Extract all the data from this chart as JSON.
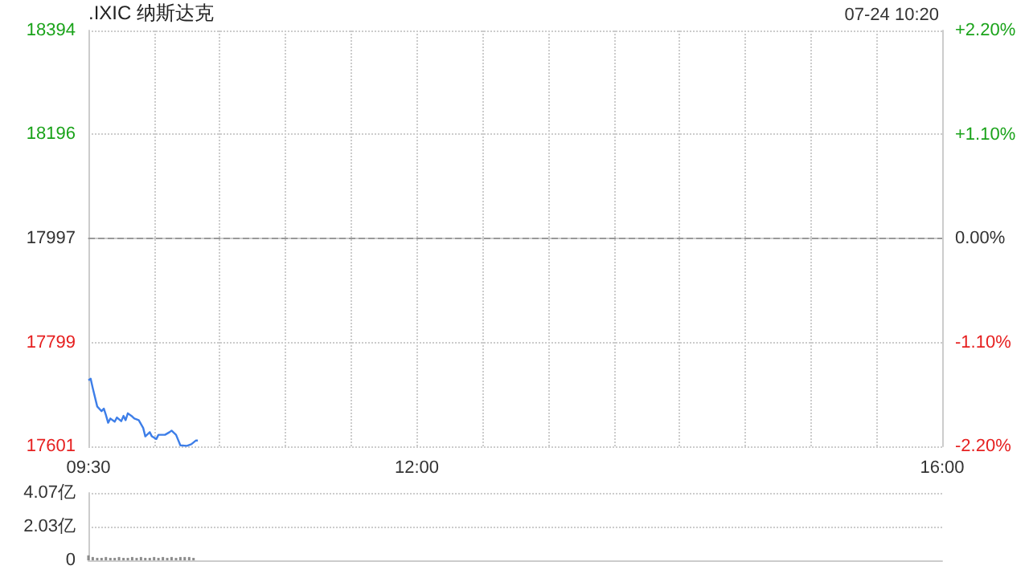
{
  "chart_data": [
    {
      "type": "line",
      "title": ".IXIC 纳斯达克",
      "annotations": [
        "07-24 10:20"
      ],
      "x": [
        9.5,
        9.517,
        9.533,
        9.567,
        9.6,
        9.617,
        9.633,
        9.65,
        9.667,
        9.7,
        9.717,
        9.75,
        9.767,
        9.783,
        9.8,
        9.833,
        9.85,
        9.883,
        9.917,
        9.933,
        9.967,
        9.983,
        10.017,
        10.033,
        10.083,
        10.117,
        10.133,
        10.167,
        10.2,
        10.25,
        10.283,
        10.317,
        10.333
      ],
      "series": [
        {
          "color": "#3d7ee8",
          "values": [
            17727,
            17730,
            17712,
            17677,
            17668,
            17673,
            17661,
            17646,
            17654,
            17648,
            17656,
            17649,
            17659,
            17651,
            17664,
            17658,
            17654,
            17651,
            17636,
            17620,
            17628,
            17620,
            17615,
            17623,
            17623,
            17628,
            17631,
            17623,
            17603,
            17602,
            17605,
            17612,
            17612
          ]
        }
      ],
      "xlim": [
        9.5,
        16
      ],
      "xticks": [
        {
          "value": 9.5,
          "label": "09:30"
        },
        {
          "value": 10,
          "label": null
        },
        {
          "value": 10.5,
          "label": null
        },
        {
          "value": 11,
          "label": null
        },
        {
          "value": 11.5,
          "label": null
        },
        {
          "value": 12,
          "label": "12:00"
        },
        {
          "value": 12.5,
          "label": null
        },
        {
          "value": 13,
          "label": null
        },
        {
          "value": 13.5,
          "label": null
        },
        {
          "value": 14,
          "label": null
        },
        {
          "value": 14.5,
          "label": null
        },
        {
          "value": 15,
          "label": null
        },
        {
          "value": 15.5,
          "label": null
        },
        {
          "value": 16,
          "label": "16:00"
        }
      ],
      "ylim": [
        17601,
        18394
      ],
      "yticks": [
        17601,
        17799,
        17997,
        18196,
        18394
      ],
      "y2lim": [
        -2.2,
        2.2
      ],
      "y2ticks": [
        {
          "value": -2.2,
          "label": "-2.20%"
        },
        {
          "value": -1.1,
          "label": "-1.10%"
        },
        {
          "value": 0,
          "label": "0.00%"
        },
        {
          "value": 1.1,
          "label": "+1.10%"
        },
        {
          "value": 2.2,
          "label": "+2.20%"
        }
      ],
      "ref_lines": [
        {
          "axis": "y",
          "value": 17997,
          "line_style": "dashed",
          "color": "#999999"
        }
      ],
      "grid": true,
      "marker": "none",
      "line_style": "solid"
    },
    {
      "type": "bar",
      "x": [
        9.5,
        9.533,
        9.567,
        9.6,
        9.633,
        9.667,
        9.7,
        9.733,
        9.767,
        9.8,
        9.833,
        9.867,
        9.9,
        9.933,
        9.967,
        10,
        10.033,
        10.067,
        10.1,
        10.133,
        10.167,
        10.2,
        10.233,
        10.267,
        10.3
      ],
      "series": [
        {
          "color": "#8c8c8c",
          "values": [
            0.3,
            0.2,
            0.15,
            0.15,
            0.2,
            0.15,
            0.15,
            0.2,
            0.15,
            0.15,
            0.2,
            0.15,
            0.2,
            0.15,
            0.15,
            0.2,
            0.15,
            0.2,
            0.15,
            0.2,
            0.15,
            0.2,
            0.2,
            0.2,
            0.15
          ]
        }
      ],
      "xlim": [
        9.5,
        16
      ],
      "ylim": [
        0,
        4.07
      ],
      "yticks": [
        0,
        {
          "value": 2.03,
          "label": "2.03亿"
        },
        {
          "value": 4.07,
          "label": "4.07亿"
        }
      ],
      "tick_labels": "y",
      "grid": "y"
    }
  ]
}
